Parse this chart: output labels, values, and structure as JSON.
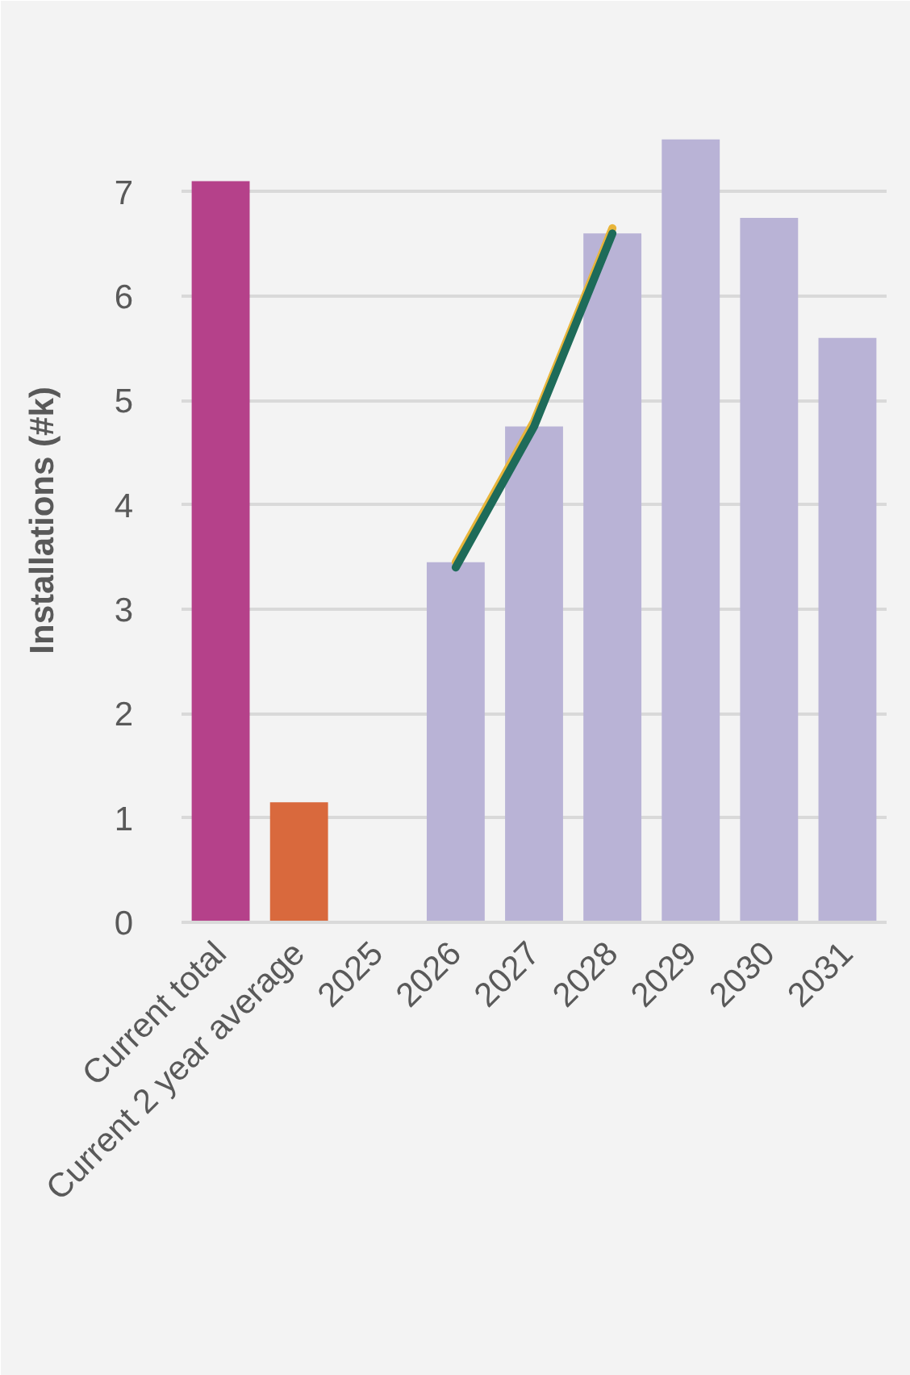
{
  "chart_data": {
    "type": "bar",
    "ylabel": "Installations (#k)",
    "categories": [
      "Current total",
      "Current 2 year average",
      "2025",
      "2026",
      "2027",
      "2028",
      "2029",
      "2030",
      "2031"
    ],
    "series": [
      {
        "colors": [
          "#b5418a",
          "#d9693d",
          "#b9b3d6",
          "#b9b3d6",
          "#b9b3d6",
          "#b9b3d6",
          "#b9b3d6",
          "#b9b3d6",
          "#b9b3d6"
        ],
        "values": [
          7.1,
          1.15,
          null,
          3.45,
          4.75,
          6.6,
          7.5,
          6.75,
          5.6
        ]
      },
      {
        "type": "line",
        "color": "#e8b53a",
        "values": [
          null,
          null,
          null,
          3.45,
          4.8,
          6.65,
          null,
          null,
          null
        ]
      },
      {
        "type": "line",
        "color": "#1e6b59",
        "values": [
          null,
          null,
          null,
          3.4,
          4.75,
          6.6,
          null,
          null,
          null
        ]
      }
    ],
    "ylim": [
      0,
      7.7
    ],
    "yticks": [
      0,
      1,
      2,
      3,
      4,
      5,
      6,
      7
    ],
    "grid": "y"
  }
}
